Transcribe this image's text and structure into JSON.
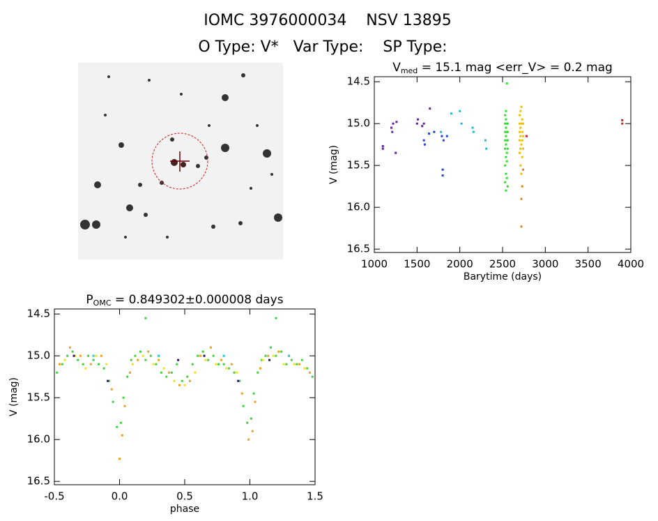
{
  "header": {
    "line1": "IOMC 3976000034    NSV 13895",
    "line2": "O Type: V*   Var Type:    SP Type:"
  },
  "chart_data": [
    {
      "type": "scatter",
      "title": {
        "main": "V",
        "sub": "med",
        "rest": " = 15.1 mag <err_V> = 0.2 mag"
      },
      "x_label": "Barytime (days)",
      "y_label": "V (mag)",
      "xlim": [
        1000,
        4000
      ],
      "xticks": [
        1000,
        1500,
        2000,
        2500,
        3000,
        3500,
        4000
      ],
      "ylim": [
        16.54,
        14.44
      ],
      "yticks": [
        14.5,
        {
          "value": 15,
          "label": "15.0"
        },
        15.5,
        {
          "value": 16,
          "label": "16.0"
        },
        16.5
      ],
      "series": [
        {
          "color": "#6020a0",
          "x": [
            1100,
            1100,
            1200,
            1210,
            1220,
            1250,
            1260,
            1500,
            1510,
            1560,
            1580,
            1650
          ],
          "values": [
            15.3,
            15.27,
            15.05,
            15.1,
            15.0,
            15.35,
            14.98,
            15.0,
            14.95,
            15.03,
            15.0,
            14.82
          ]
        },
        {
          "color": "#2040d0",
          "x": [
            1580,
            1590,
            1640,
            1700,
            1790,
            1800,
            1800,
            1810,
            1850
          ],
          "values": [
            15.2,
            15.25,
            15.12,
            15.1,
            15.15,
            15.55,
            15.62,
            15.2,
            15.15
          ]
        },
        {
          "color": "#20b8d0",
          "x": [
            1780,
            1900,
            2000,
            2020,
            2150,
            2160,
            2300,
            2310
          ],
          "values": [
            15.1,
            14.88,
            14.85,
            15.0,
            15.05,
            15.1,
            15.2,
            15.3
          ]
        },
        {
          "color": "#30e030",
          "x": [
            2530,
            2530,
            2530,
            2530,
            2530,
            2530,
            2530,
            2540,
            2540,
            2540,
            2540,
            2540,
            2540,
            2540,
            2540,
            2550,
            2550,
            2550,
            2550,
            2550,
            2550,
            2550,
            2560,
            2560,
            2560,
            2560,
            2560
          ],
          "values": [
            14.9,
            15.0,
            15.1,
            15.2,
            15.3,
            15.5,
            15.7,
            14.85,
            14.95,
            15.05,
            15.15,
            15.25,
            15.4,
            15.6,
            15.8,
            14.52,
            15.0,
            15.1,
            15.2,
            15.35,
            15.45,
            15.65,
            15.0,
            15.1,
            15.2,
            15.3,
            15.75
          ]
        },
        {
          "color": "#f0c000",
          "x": [
            2700,
            2700,
            2700,
            2700,
            2700,
            2710,
            2710,
            2710,
            2710,
            2710,
            2720,
            2720,
            2720,
            2720,
            2730,
            2730,
            2730,
            2730,
            2740,
            2740,
            2740
          ],
          "values": [
            14.9,
            15.0,
            15.1,
            15.2,
            15.35,
            14.85,
            15.05,
            15.15,
            15.3,
            15.5,
            14.8,
            15.0,
            15.25,
            15.6,
            14.95,
            15.1,
            15.2,
            15.4,
            15.0,
            15.15,
            15.3
          ]
        },
        {
          "color": "#e08020",
          "x": [
            2720,
            2720,
            2730,
            2740
          ],
          "values": [
            16.23,
            15.9,
            15.75,
            15.55
          ]
        },
        {
          "color": "#d02020",
          "x": [
            2780,
            3900,
            3900
          ],
          "values": [
            15.15,
            14.96,
            15.0
          ]
        }
      ]
    },
    {
      "type": "scatter",
      "title": {
        "main": "P",
        "sub": "OMC",
        "rest": " = 0.849302±0.000008 days"
      },
      "x_label": "phase",
      "y_label": "V (mag)",
      "xlim": [
        -0.5,
        1.5
      ],
      "xticks": [
        -0.5,
        {
          "value": 0,
          "label": "0.0"
        },
        0.5,
        {
          "value": 1,
          "label": "1.0"
        },
        1.5
      ],
      "ylim": [
        16.54,
        14.44
      ],
      "yticks": [
        14.5,
        {
          "value": 15,
          "label": "15.0"
        },
        15.5,
        {
          "value": 16,
          "label": "16.0"
        },
        16.5
      ],
      "series": [
        {
          "color": "#40d040",
          "x": [
            -0.48,
            -0.44,
            -0.4,
            -0.36,
            -0.32,
            -0.28,
            -0.24,
            -0.2,
            -0.16,
            -0.12,
            -0.08,
            -0.05,
            -0.02,
            0.01,
            0.03,
            0.06,
            0.09,
            0.12,
            0.16,
            0.2,
            0.24,
            0.28,
            0.32,
            0.36,
            0.4,
            0.44,
            0.48,
            0.52,
            0.56,
            0.6,
            0.64,
            0.68,
            0.72,
            0.76,
            0.8,
            0.84,
            0.88,
            0.92,
            0.95,
            0.98,
            1.01,
            1.03,
            1.06,
            1.09,
            1.12,
            1.16,
            1.2,
            1.24,
            1.28,
            1.32,
            1.36,
            1.4,
            1.44,
            1.48,
            0.2,
            1.2
          ],
          "values": [
            15.2,
            15.1,
            15.0,
            14.95,
            15.05,
            15.1,
            15.0,
            15.05,
            15.1,
            15.15,
            15.3,
            15.55,
            15.85,
            15.8,
            15.5,
            15.25,
            15.05,
            15.0,
            14.95,
            15.05,
            15.0,
            15.1,
            15.2,
            15.25,
            15.2,
            15.1,
            15.3,
            15.25,
            15.1,
            15.0,
            14.95,
            15.05,
            15.0,
            15.1,
            15.1,
            15.15,
            15.2,
            15.3,
            15.6,
            15.8,
            15.75,
            15.45,
            15.2,
            15.05,
            15.0,
            14.9,
            15.0,
            14.95,
            15.1,
            15.05,
            15.1,
            15.05,
            15.15,
            15.25,
            14.55,
            14.55
          ]
        },
        {
          "color": "#f0a020",
          "x": [
            -0.46,
            -0.38,
            -0.3,
            -0.22,
            -0.14,
            -0.06,
            0.0,
            0.02,
            0.04,
            0.08,
            0.14,
            0.22,
            0.3,
            0.38,
            0.46,
            0.54,
            0.62,
            0.7,
            0.78,
            0.86,
            0.94,
            0.99,
            1.02,
            1.04,
            1.08,
            1.14,
            1.22,
            1.3,
            1.38,
            1.46
          ],
          "values": [
            15.1,
            14.9,
            15.0,
            15.1,
            15.0,
            15.4,
            16.23,
            15.95,
            15.6,
            15.2,
            15.05,
            14.95,
            15.05,
            15.2,
            15.35,
            15.3,
            15.0,
            14.9,
            15.05,
            15.1,
            15.45,
            16.0,
            15.9,
            15.55,
            15.15,
            15.0,
            14.95,
            15.0,
            15.1,
            15.2
          ]
        },
        {
          "color": "#f0e020",
          "x": [
            -0.42,
            -0.34,
            -0.26,
            -0.18,
            -0.1,
            0.1,
            0.18,
            0.26,
            0.34,
            0.42,
            0.5,
            0.58,
            0.66,
            0.74,
            0.82,
            0.9,
            1.1,
            1.18,
            1.26,
            1.34,
            1.42
          ],
          "values": [
            15.05,
            15.0,
            15.15,
            15.0,
            15.1,
            15.1,
            15.0,
            15.1,
            15.15,
            15.3,
            15.35,
            15.2,
            15.05,
            15.1,
            15.15,
            15.2,
            15.05,
            15.0,
            15.1,
            15.1,
            15.15
          ]
        },
        {
          "color": "#20c8d0",
          "x": [
            -0.2,
            0.3,
            0.8,
            1.3
          ],
          "values": [
            15.0,
            15.0,
            15.0,
            15.0
          ]
        },
        {
          "color": "#301060",
          "x": [
            -0.09,
            -0.35,
            0.45,
            0.91,
            0.65,
            1.15
          ],
          "values": [
            15.3,
            15.0,
            15.05,
            15.3,
            15.0,
            15.05
          ]
        }
      ]
    }
  ]
}
